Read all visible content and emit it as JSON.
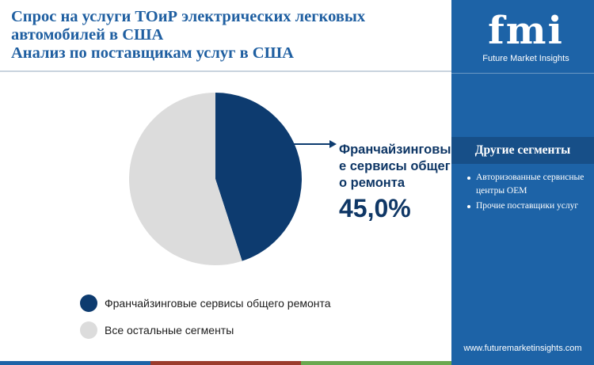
{
  "header": {
    "title_lines": [
      "Спрос на услуги ТОиР электрических легковых",
      "автомобилей в США",
      "Анализ по поставщикам услуг в США"
    ]
  },
  "chart_data": {
    "type": "pie",
    "slices": [
      {
        "label": "Франчайзинговые сервисы общего ремонта",
        "value": 45.0,
        "color": "#0d3b6f"
      },
      {
        "label": "Все остальные сегменты",
        "value": 55.0,
        "color": "#dcdcdc"
      }
    ],
    "highlight": {
      "label": "Франчайзинговые сервисы общего ремонта",
      "value_text": "45,0%"
    },
    "legend_placement": "bottom"
  },
  "legend": {
    "items": [
      {
        "label": "Франчайзинговые сервисы общего ремонта",
        "color": "#0d3b6f"
      },
      {
        "label": "Все остальные сегменты",
        "color": "#dcdcdc"
      }
    ]
  },
  "sidebar": {
    "logo_text": "fmi",
    "logo_subtitle": "Future Market Insights",
    "other_segments_title": "Другие сегменты",
    "other_segments": [
      "Авторизованные сервисные центры OEM",
      "Прочие поставщики услуг"
    ],
    "url": "www.futuremarketinsights.com"
  },
  "colors": {
    "title": "#1f5fa1",
    "sidebar": "#1d63a7",
    "accent_dark": "#0d3b6f",
    "bottom_bar": [
      "#1d63a7",
      "#9b3b2c",
      "#6aa84f"
    ]
  }
}
